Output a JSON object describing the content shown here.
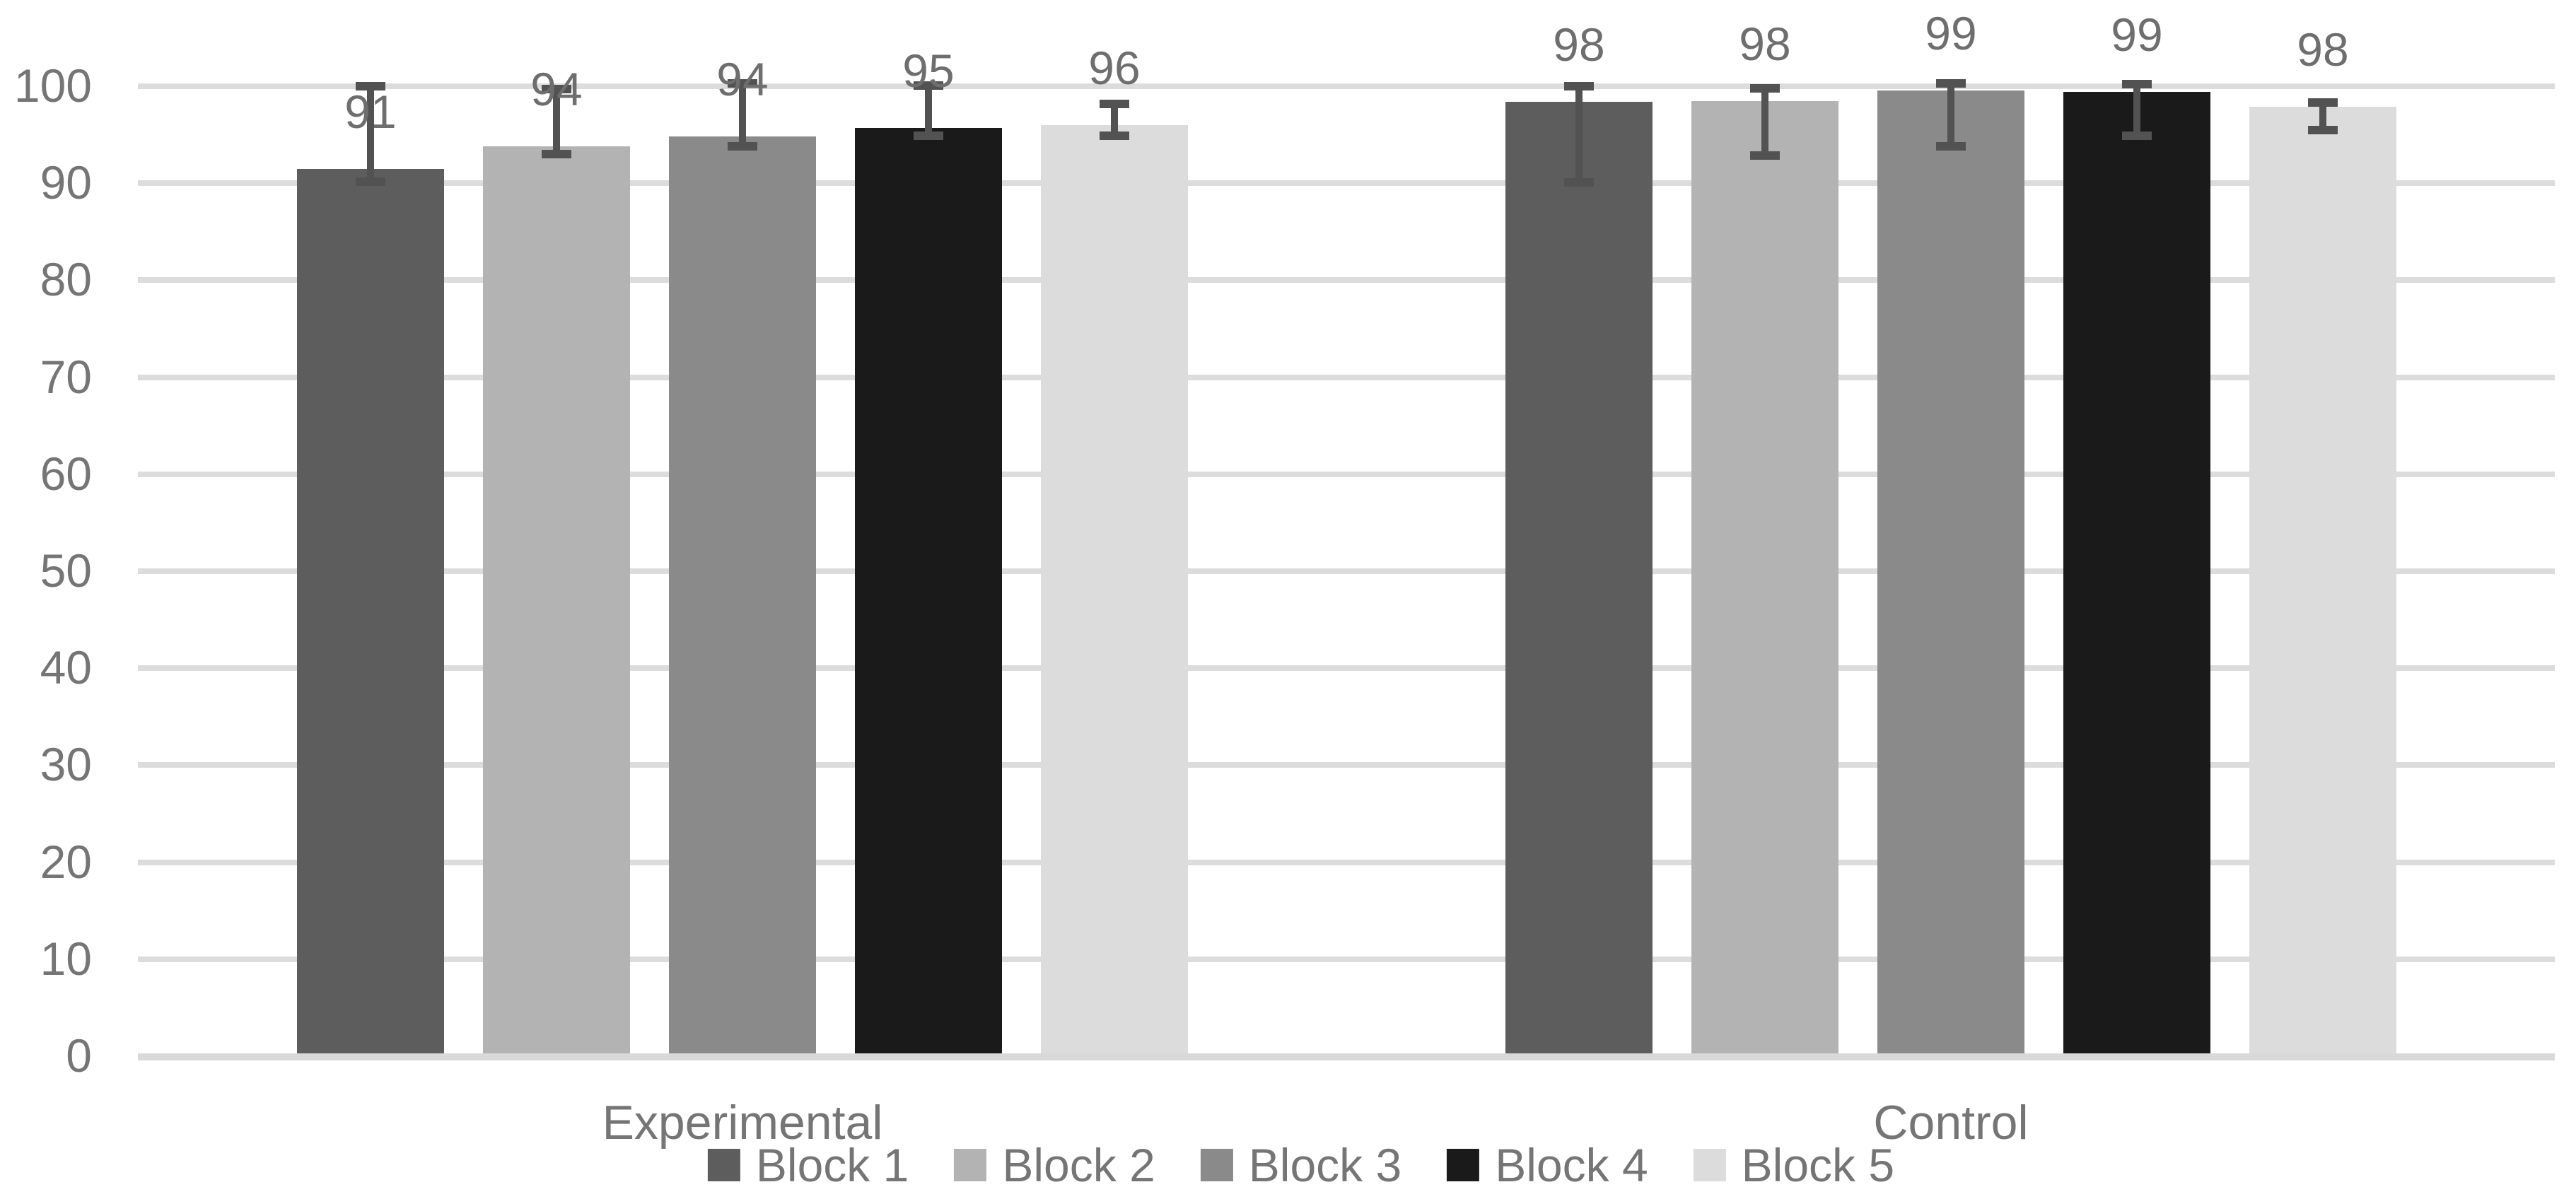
{
  "chart_data": {
    "type": "bar",
    "title": "",
    "categories": [
      "Experimental",
      "Control"
    ],
    "series": [
      {
        "name": "Block 1",
        "color": "#5d5d5d",
        "values": [
          91.2,
          98.1
        ],
        "labels": [
          "91",
          "98"
        ],
        "error_low": [
          89.9,
          89.8
        ],
        "error_high": [
          99.7,
          99.7
        ]
      },
      {
        "name": "Block 2",
        "color": "#b3b3b3",
        "values": [
          93.5,
          98.2
        ],
        "labels": [
          "94",
          "98"
        ],
        "error_low": [
          92.7,
          92.6
        ],
        "error_high": [
          99.4,
          99.5
        ]
      },
      {
        "name": "Block 3",
        "color": "#8a8a8a",
        "values": [
          94.5,
          99.3
        ],
        "labels": [
          "94",
          "99"
        ],
        "error_low": [
          93.5,
          93.5
        ],
        "error_high": [
          100.0,
          100.0
        ]
      },
      {
        "name": "Block 4",
        "color": "#1a1a1a",
        "values": [
          95.4,
          99.1
        ],
        "labels": [
          "95",
          "99"
        ],
        "error_low": [
          94.6,
          94.6
        ],
        "error_high": [
          99.8,
          99.9
        ]
      },
      {
        "name": "Block 5",
        "color": "#dcdcdc",
        "values": [
          95.7,
          97.6
        ],
        "labels": [
          "96",
          "98"
        ],
        "error_low": [
          94.6,
          95.2
        ],
        "error_high": [
          97.9,
          98.0
        ]
      }
    ],
    "xlabel": "",
    "ylabel": "",
    "y_axis": {
      "min": 0,
      "max": 100,
      "step": 10,
      "tick_labels": [
        "0",
        "10",
        "20",
        "30",
        "40",
        "50",
        "60",
        "70",
        "80",
        "90",
        "100"
      ]
    },
    "legend": [
      "Block 1",
      "Block 2",
      "Block 3",
      "Block 4",
      "Block 5"
    ],
    "legend_position": "bottom",
    "grid": true,
    "error_bars": true,
    "colors": {
      "gridline": "#dcdcdc",
      "axis_line": "#d9d9d9",
      "tick_text": "#757575",
      "data_label_text": "#6e6e6e",
      "category_text": "#757575",
      "legend_text": "#757575",
      "error_bar": "#525252",
      "background": "#ffffff"
    }
  }
}
